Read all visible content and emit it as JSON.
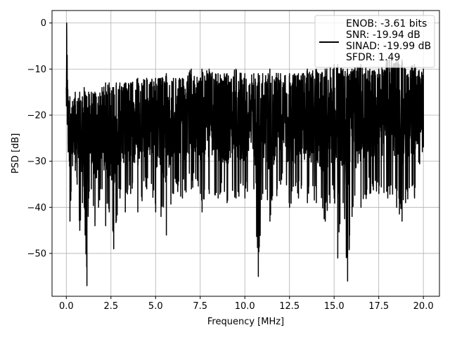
{
  "chart_data": {
    "type": "line",
    "xlabel": "Frequency [MHz]",
    "ylabel": "PSD [dB]",
    "xlim": [
      -0.8,
      20.9
    ],
    "ylim": [
      -59.3,
      2.7
    ],
    "xticks": [
      0.0,
      2.5,
      5.0,
      7.5,
      10.0,
      12.5,
      15.0,
      17.5,
      20.0
    ],
    "xtick_labels": [
      "0.0",
      "2.5",
      "5.0",
      "7.5",
      "10.0",
      "12.5",
      "15.0",
      "17.5",
      "20.0"
    ],
    "yticks": [
      0,
      -10,
      -20,
      -30,
      -40,
      -50
    ],
    "ytick_labels": [
      "0",
      "−10",
      "−20",
      "−30",
      "−40",
      "−50"
    ],
    "grid": true,
    "legend_position": "top-right",
    "legend": [
      "ENOB: -3.61 bits",
      "SNR: -19.94 dB",
      "SINAD: -19.99 dB",
      "SFDR: 1.49"
    ],
    "line_color": "#000000",
    "series": [
      {
        "x": [
          0.0,
          0.02,
          0.05,
          0.1,
          0.2,
          0.35,
          0.5,
          0.6,
          0.75,
          0.9,
          1.0,
          1.05,
          1.15,
          1.25,
          1.4,
          1.6,
          1.8,
          2.0,
          2.2,
          2.4,
          2.6,
          2.65,
          2.8,
          3.0,
          3.3,
          3.6,
          4.0,
          4.5,
          5.0,
          5.3,
          5.6,
          6.0,
          6.5,
          7.0,
          7.5,
          7.6,
          8.0,
          8.5,
          9.0,
          9.5,
          10.0,
          10.5,
          10.75,
          11.0,
          11.4,
          12.0,
          12.5,
          13.0,
          13.5,
          14.0,
          14.5,
          15.0,
          15.2,
          15.5,
          15.75,
          16.0,
          16.5,
          17.0,
          17.5,
          18.0,
          18.5,
          18.8,
          19.0,
          19.5,
          20.0
        ],
        "min": [
          -18,
          -12,
          -22,
          -28,
          -43,
          -31,
          -32,
          -35,
          -45,
          -39,
          -40,
          -46,
          -57,
          -38,
          -36,
          -44,
          -40,
          -36,
          -44,
          -41,
          -45,
          -49,
          -43,
          -38,
          -41,
          -37,
          -41,
          -36,
          -41,
          -42,
          -46,
          -37,
          -38,
          -36,
          -37,
          -41,
          -37,
          -38,
          -39,
          -38,
          -38,
          -36,
          -55,
          -37,
          -43,
          -35,
          -40,
          -38,
          -39,
          -39,
          -43,
          -38,
          -51,
          -39,
          -56,
          -42,
          -40,
          -37,
          -37,
          -38,
          -40,
          -43,
          -39,
          -38,
          -27
        ],
        "max": [
          -14,
          0,
          -7,
          -16,
          -16,
          -17,
          -15,
          -17,
          -15,
          -16,
          -14,
          -15,
          -16,
          -15,
          -15,
          -15,
          -16,
          -14,
          -13,
          -13,
          -14,
          -14,
          -13,
          -13,
          -13,
          -13,
          -12,
          -12,
          -12,
          -12,
          -11,
          -12,
          -12,
          -10,
          -12,
          -10,
          -10,
          -11,
          -11,
          -10,
          -11,
          -11,
          -11,
          -11,
          -10,
          -11,
          -11,
          -11,
          -10,
          -10,
          -10,
          -9,
          -9,
          -10,
          -10,
          -10,
          -9,
          -10,
          -10,
          -8,
          -8,
          -8,
          -10,
          -9,
          -10
        ]
      }
    ]
  }
}
